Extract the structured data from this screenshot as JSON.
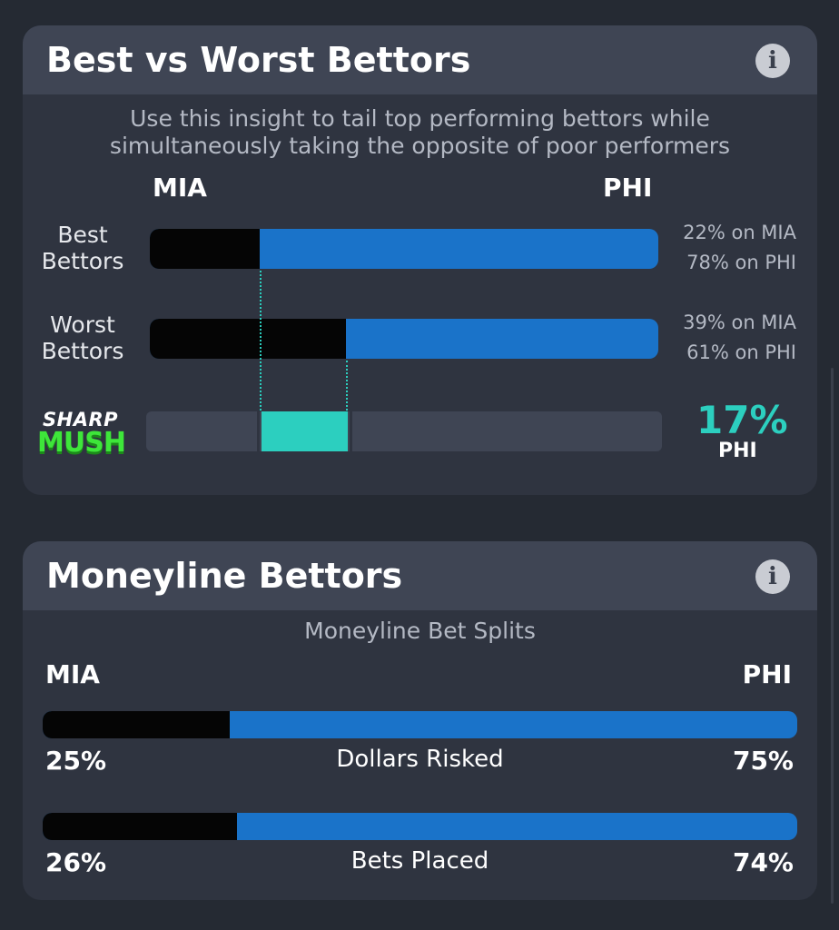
{
  "best_vs_worst": {
    "title": "Best vs Worst Bettors",
    "info_icon": "i",
    "subtitle": "Use this insight to tail top performing bettors while simultaneously taking the opposite of poor performers",
    "team_left": "MIA",
    "team_right": "PHI",
    "rows": [
      {
        "label_line1": "Best",
        "label_line2": "Bettors",
        "left_pct_text": "22% on MIA",
        "right_pct_text": "78% on PHI",
        "left_fraction": 0.22
      },
      {
        "label_line1": "Worst",
        "label_line2": "Bettors",
        "left_pct_text": "39% on MIA",
        "right_pct_text": "61% on PHI",
        "left_fraction": 0.39
      }
    ],
    "logo": {
      "line1": "SHARP",
      "line2": "MUSH"
    },
    "difference": {
      "value": "17%",
      "team": "PHI"
    },
    "colors": {
      "left_team": "#050505",
      "right_team": "#1a73c9",
      "accent": "#2ccfbf"
    }
  },
  "moneyline": {
    "title": "Moneyline Bettors",
    "info_icon": "i",
    "subtitle": "Moneyline Bet Splits",
    "team_left": "MIA",
    "team_right": "PHI",
    "rows": [
      {
        "label": "Dollars Risked",
        "left_pct": "25%",
        "right_pct": "75%",
        "left_fraction": 0.25
      },
      {
        "label": "Bets Placed",
        "left_pct": "26%",
        "right_pct": "74%",
        "left_fraction": 0.26
      }
    ]
  }
}
